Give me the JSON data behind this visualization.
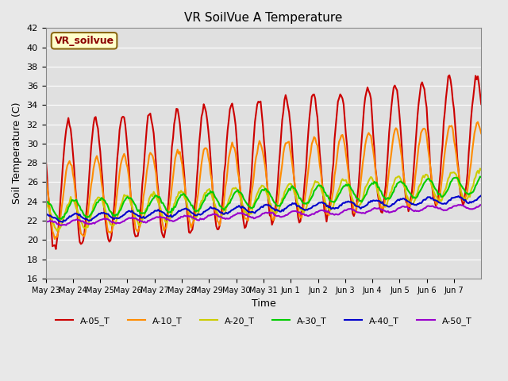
{
  "title": "VR SoilVue A Temperature",
  "xlabel": "Time",
  "ylabel": "Soil Temperature (C)",
  "ylim": [
    16,
    42
  ],
  "yticks": [
    16,
    18,
    20,
    22,
    24,
    26,
    28,
    30,
    32,
    34,
    36,
    38,
    40,
    42
  ],
  "background_color": "#e8e8e8",
  "plot_bg_color": "#e0e0e0",
  "grid_color": "#ffffff",
  "legend_label": "VR_soilvue",
  "series_names": [
    "A-05_T",
    "A-10_T",
    "A-20_T",
    "A-30_T",
    "A-40_T",
    "A-50_T"
  ],
  "series_colors": [
    "#cc0000",
    "#ff8c00",
    "#cccc00",
    "#00cc00",
    "#0000cc",
    "#9900cc"
  ],
  "xtick_labels": [
    "May 23",
    "May 24",
    "May 25",
    "May 26",
    "May 27",
    "May 28",
    "May 29",
    "May 30",
    "May 31",
    "Jun 1",
    "Jun 2",
    "Jun 3",
    "Jun 4",
    "Jun 5",
    "Jun 6",
    "Jun 7"
  ],
  "num_days": 16
}
